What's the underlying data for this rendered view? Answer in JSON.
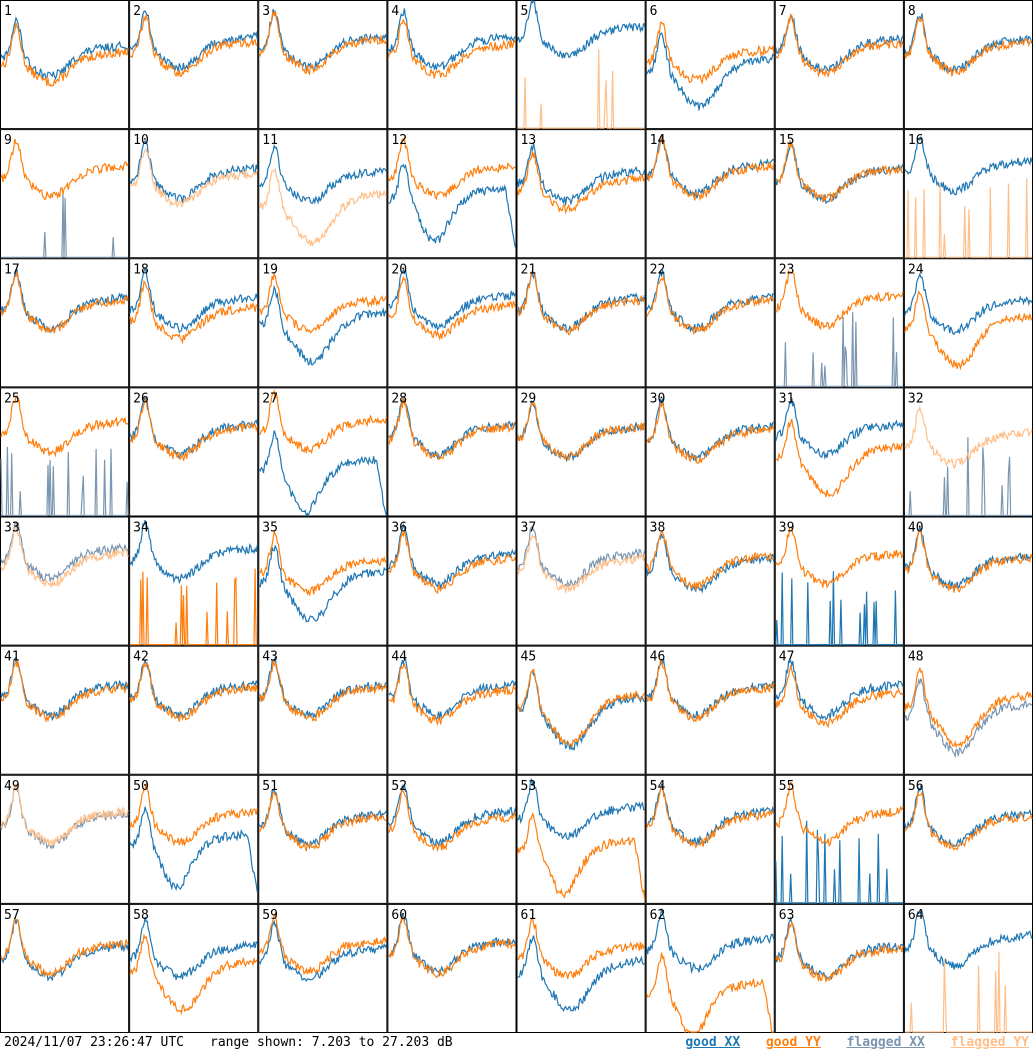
{
  "chart_data": {
    "type": "line",
    "layout": "8x8 small multiples, one panel per antenna input",
    "panels": [
      {
        "label": "1",
        "xx": "good",
        "yy": "good",
        "xx_level": 0.55,
        "yy_level": 0.5,
        "xx_shape": "normal",
        "yy_shape": "normal"
      },
      {
        "label": "2",
        "xx": "good",
        "yy": "good",
        "xx_level": 0.62,
        "yy_level": 0.58,
        "xx_shape": "normal",
        "yy_shape": "normal"
      },
      {
        "label": "3",
        "xx": "good",
        "yy": "good",
        "xx_level": 0.62,
        "yy_level": 0.6,
        "xx_shape": "normal",
        "yy_shape": "normal"
      },
      {
        "label": "4",
        "xx": "good",
        "yy": "good",
        "xx_level": 0.62,
        "yy_level": 0.56,
        "xx_shape": "normal",
        "yy_shape": "normal"
      },
      {
        "label": "5",
        "xx": "good",
        "yy": "flagged",
        "xx_level": 0.7,
        "yy_level": 0.0,
        "xx_shape": "normal",
        "yy_shape": "spikes"
      },
      {
        "label": "6",
        "xx": "good",
        "yy": "good",
        "xx_level": 0.45,
        "yy_level": 0.52,
        "xx_shape": "dip",
        "yy_shape": "normal"
      },
      {
        "label": "7",
        "xx": "good",
        "yy": "good",
        "xx_level": 0.6,
        "yy_level": 0.57,
        "xx_shape": "normal",
        "yy_shape": "normal"
      },
      {
        "label": "8",
        "xx": "good",
        "yy": "good",
        "xx_level": 0.6,
        "yy_level": 0.58,
        "xx_shape": "normal",
        "yy_shape": "normal"
      },
      {
        "label": "9",
        "xx": "flagged",
        "yy": "good",
        "xx_level": 0.0,
        "yy_level": 0.62,
        "xx_shape": "spikes",
        "yy_shape": "normal"
      },
      {
        "label": "10",
        "xx": "good",
        "yy": "flagged",
        "xx_level": 0.6,
        "yy_level": 0.56,
        "xx_shape": "normal",
        "yy_shape": "normal"
      },
      {
        "label": "11",
        "xx": "good",
        "yy": "flagged",
        "xx_level": 0.58,
        "yy_level": 0.4,
        "xx_shape": "normal",
        "yy_shape": "dip"
      },
      {
        "label": "12",
        "xx": "good",
        "yy": "good",
        "xx_level": 0.45,
        "yy_level": 0.62,
        "xx_shape": "droop",
        "yy_shape": "normal"
      },
      {
        "label": "13",
        "xx": "good",
        "yy": "good",
        "xx_level": 0.58,
        "yy_level": 0.52,
        "xx_shape": "normal",
        "yy_shape": "normal"
      },
      {
        "label": "14",
        "xx": "good",
        "yy": "good",
        "xx_level": 0.64,
        "yy_level": 0.62,
        "xx_shape": "normal",
        "yy_shape": "normal"
      },
      {
        "label": "15",
        "xx": "good",
        "yy": "good",
        "xx_level": 0.6,
        "yy_level": 0.6,
        "xx_shape": "normal",
        "yy_shape": "normal"
      },
      {
        "label": "16",
        "xx": "good",
        "yy": "flagged",
        "xx_level": 0.66,
        "yy_level": 0.0,
        "xx_shape": "normal",
        "yy_shape": "spikes"
      },
      {
        "label": "17",
        "xx": "good",
        "yy": "good",
        "xx_level": 0.6,
        "yy_level": 0.58,
        "xx_shape": "normal",
        "yy_shape": "normal"
      },
      {
        "label": "18",
        "xx": "good",
        "yy": "good",
        "xx_level": 0.6,
        "yy_level": 0.52,
        "xx_shape": "normal",
        "yy_shape": "normal"
      },
      {
        "label": "19",
        "xx": "good",
        "yy": "good",
        "xx_level": 0.48,
        "yy_level": 0.58,
        "xx_shape": "dip",
        "yy_shape": "normal"
      },
      {
        "label": "20",
        "xx": "good",
        "yy": "good",
        "xx_level": 0.62,
        "yy_level": 0.54,
        "xx_shape": "normal",
        "yy_shape": "normal"
      },
      {
        "label": "21",
        "xx": "good",
        "yy": "good",
        "xx_level": 0.6,
        "yy_level": 0.58,
        "xx_shape": "normal",
        "yy_shape": "normal"
      },
      {
        "label": "22",
        "xx": "good",
        "yy": "good",
        "xx_level": 0.6,
        "yy_level": 0.58,
        "xx_shape": "normal",
        "yy_shape": "normal"
      },
      {
        "label": "23",
        "xx": "flagged",
        "yy": "good",
        "xx_level": 0.0,
        "yy_level": 0.62,
        "xx_shape": "spikes",
        "yy_shape": "normal"
      },
      {
        "label": "24",
        "xx": "good",
        "yy": "good",
        "xx_level": 0.58,
        "yy_level": 0.45,
        "xx_shape": "normal",
        "yy_shape": "dip"
      },
      {
        "label": "25",
        "xx": "flagged",
        "yy": "good",
        "xx_level": 0.0,
        "yy_level": 0.64,
        "xx_shape": "spikes",
        "yy_shape": "normal"
      },
      {
        "label": "26",
        "xx": "good",
        "yy": "good",
        "xx_level": 0.62,
        "yy_level": 0.6,
        "xx_shape": "normal",
        "yy_shape": "normal"
      },
      {
        "label": "27",
        "xx": "good",
        "yy": "good",
        "xx_level": 0.35,
        "yy_level": 0.66,
        "xx_shape": "droop",
        "yy_shape": "normal"
      },
      {
        "label": "28",
        "xx": "good",
        "yy": "good",
        "xx_level": 0.62,
        "yy_level": 0.6,
        "xx_shape": "normal",
        "yy_shape": "normal"
      },
      {
        "label": "29",
        "xx": "good",
        "yy": "good",
        "xx_level": 0.6,
        "yy_level": 0.6,
        "xx_shape": "normal",
        "yy_shape": "normal"
      },
      {
        "label": "30",
        "xx": "good",
        "yy": "good",
        "xx_level": 0.6,
        "yy_level": 0.58,
        "xx_shape": "normal",
        "yy_shape": "normal"
      },
      {
        "label": "31",
        "xx": "good",
        "yy": "good",
        "xx_level": 0.62,
        "yy_level": 0.45,
        "xx_shape": "normal",
        "yy_shape": "dip"
      },
      {
        "label": "32",
        "xx": "flagged",
        "yy": "flagged",
        "xx_level": 0.0,
        "yy_level": 0.55,
        "xx_shape": "spikes",
        "yy_shape": "normal"
      },
      {
        "label": "33",
        "xx": "flagged",
        "yy": "flagged",
        "xx_level": 0.66,
        "yy_level": 0.62,
        "xx_shape": "normal",
        "yy_shape": "normal"
      },
      {
        "label": "34",
        "xx": "good",
        "yy": "good",
        "xx_level": 0.66,
        "yy_level": 0.0,
        "xx_shape": "normal",
        "yy_shape": "spikes"
      },
      {
        "label": "35",
        "xx": "good",
        "yy": "good",
        "xx_level": 0.48,
        "yy_level": 0.56,
        "xx_shape": "dip",
        "yy_shape": "normal"
      },
      {
        "label": "36",
        "xx": "good",
        "yy": "good",
        "xx_level": 0.62,
        "yy_level": 0.58,
        "xx_shape": "normal",
        "yy_shape": "normal"
      },
      {
        "label": "37",
        "xx": "flagged",
        "yy": "flagged",
        "xx_level": 0.62,
        "yy_level": 0.58,
        "xx_shape": "normal",
        "yy_shape": "normal"
      },
      {
        "label": "38",
        "xx": "good",
        "yy": "good",
        "xx_level": 0.58,
        "yy_level": 0.6,
        "xx_shape": "normal",
        "yy_shape": "normal"
      },
      {
        "label": "39",
        "xx": "good",
        "yy": "good",
        "xx_level": 0.0,
        "yy_level": 0.62,
        "xx_shape": "spikes",
        "yy_shape": "normal"
      },
      {
        "label": "40",
        "xx": "good",
        "yy": "good",
        "xx_level": 0.6,
        "yy_level": 0.58,
        "xx_shape": "normal",
        "yy_shape": "normal"
      },
      {
        "label": "41",
        "xx": "good",
        "yy": "good",
        "xx_level": 0.6,
        "yy_level": 0.58,
        "xx_shape": "normal",
        "yy_shape": "normal"
      },
      {
        "label": "42",
        "xx": "good",
        "yy": "good",
        "xx_level": 0.6,
        "yy_level": 0.58,
        "xx_shape": "normal",
        "yy_shape": "normal"
      },
      {
        "label": "43",
        "xx": "good",
        "yy": "good",
        "xx_level": 0.6,
        "yy_level": 0.58,
        "xx_shape": "normal",
        "yy_shape": "normal"
      },
      {
        "label": "44",
        "xx": "good",
        "yy": "good",
        "xx_level": 0.6,
        "yy_level": 0.56,
        "xx_shape": "normal",
        "yy_shape": "normal"
      },
      {
        "label": "45",
        "xx": "good",
        "yy": "good",
        "xx_level": 0.5,
        "yy_level": 0.52,
        "xx_shape": "dip",
        "yy_shape": "dip"
      },
      {
        "label": "46",
        "xx": "good",
        "yy": "good",
        "xx_level": 0.6,
        "yy_level": 0.58,
        "xx_shape": "normal",
        "yy_shape": "normal"
      },
      {
        "label": "47",
        "xx": "good",
        "yy": "good",
        "xx_level": 0.6,
        "yy_level": 0.54,
        "xx_shape": "normal",
        "yy_shape": "normal"
      },
      {
        "label": "48",
        "xx": "flagged",
        "yy": "good",
        "xx_level": 0.45,
        "yy_level": 0.52,
        "xx_shape": "dip",
        "yy_shape": "dip"
      },
      {
        "label": "49",
        "xx": "flagged",
        "yy": "flagged",
        "xx_level": 0.6,
        "yy_level": 0.62,
        "xx_shape": "normal",
        "yy_shape": "normal"
      },
      {
        "label": "50",
        "xx": "good",
        "yy": "good",
        "xx_level": 0.45,
        "yy_level": 0.62,
        "xx_shape": "droop",
        "yy_shape": "normal"
      },
      {
        "label": "51",
        "xx": "good",
        "yy": "good",
        "xx_level": 0.6,
        "yy_level": 0.58,
        "xx_shape": "normal",
        "yy_shape": "normal"
      },
      {
        "label": "52",
        "xx": "good",
        "yy": "good",
        "xx_level": 0.62,
        "yy_level": 0.58,
        "xx_shape": "normal",
        "yy_shape": "normal"
      },
      {
        "label": "53",
        "xx": "good",
        "yy": "good",
        "xx_level": 0.66,
        "yy_level": 0.4,
        "xx_shape": "normal",
        "yy_shape": "droop"
      },
      {
        "label": "54",
        "xx": "good",
        "yy": "good",
        "xx_level": 0.62,
        "yy_level": 0.6,
        "xx_shape": "normal",
        "yy_shape": "normal"
      },
      {
        "label": "55",
        "xx": "good",
        "yy": "good",
        "xx_level": 0.0,
        "yy_level": 0.62,
        "xx_shape": "spikes",
        "yy_shape": "normal"
      },
      {
        "label": "56",
        "xx": "good",
        "yy": "good",
        "xx_level": 0.6,
        "yy_level": 0.58,
        "xx_shape": "normal",
        "yy_shape": "normal"
      },
      {
        "label": "57",
        "xx": "good",
        "yy": "good",
        "xx_level": 0.58,
        "yy_level": 0.6,
        "xx_shape": "normal",
        "yy_shape": "normal"
      },
      {
        "label": "58",
        "xx": "good",
        "yy": "good",
        "xx_level": 0.58,
        "yy_level": 0.46,
        "xx_shape": "normal",
        "yy_shape": "dip"
      },
      {
        "label": "59",
        "xx": "good",
        "yy": "good",
        "xx_level": 0.56,
        "yy_level": 0.62,
        "xx_shape": "normal",
        "yy_shape": "normal"
      },
      {
        "label": "60",
        "xx": "good",
        "yy": "good",
        "xx_level": 0.62,
        "yy_level": 0.6,
        "xx_shape": "normal",
        "yy_shape": "normal"
      },
      {
        "label": "61",
        "xx": "good",
        "yy": "good",
        "xx_level": 0.46,
        "yy_level": 0.58,
        "xx_shape": "dip",
        "yy_shape": "normal"
      },
      {
        "label": "62",
        "xx": "good",
        "yy": "good",
        "xx_level": 0.64,
        "yy_level": 0.3,
        "xx_shape": "normal",
        "yy_shape": "droop"
      },
      {
        "label": "63",
        "xx": "good",
        "yy": "good",
        "xx_level": 0.58,
        "yy_level": 0.56,
        "xx_shape": "normal",
        "yy_shape": "normal"
      },
      {
        "label": "64",
        "xx": "good",
        "yy": "flagged",
        "xx_level": 0.66,
        "yy_level": 0.0,
        "xx_shape": "normal",
        "yy_shape": "spikes"
      }
    ]
  },
  "footer": {
    "timestamp": "2024/11/07 23:26:47 UTC",
    "range": "range shown: 7.203 to 27.203 dB"
  },
  "legend": [
    {
      "label": "good XX",
      "color": "#1f77b4"
    },
    {
      "label": "good YY",
      "color": "#ff7f0e"
    },
    {
      "label": "flagged XX",
      "color": "#7a96b0"
    },
    {
      "label": "flagged YY",
      "color": "#ffbf8a"
    }
  ],
  "colors": {
    "good_xx": "#1f77b4",
    "good_yy": "#ff7f0e",
    "flagged_xx": "#7a96b0",
    "flagged_yy": "#ffbf8a"
  }
}
